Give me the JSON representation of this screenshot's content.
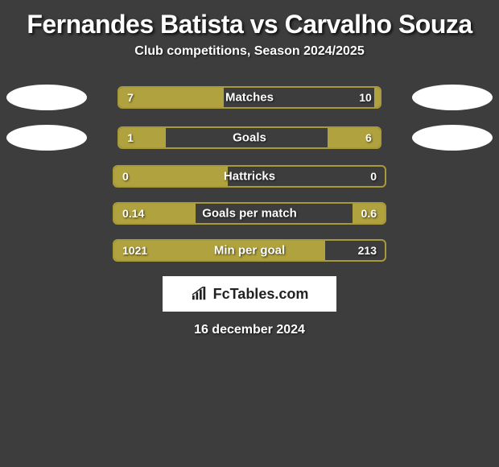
{
  "header": {
    "title": "Fernandes Batista vs Carvalho Souza",
    "subtitle": "Club competitions, Season 2024/2025"
  },
  "colors": {
    "background": "#3d3d3d",
    "bar_fill": "#b0a23e",
    "bar_border": "#a89a3a",
    "text": "#ffffff",
    "photo_bg": "#ffffff",
    "logo_bg": "#ffffff",
    "logo_text": "#222222"
  },
  "stats": [
    {
      "label": "Matches",
      "left_value": "7",
      "right_value": "10",
      "left_pct": 40,
      "right_pct": 2,
      "show_photos": true
    },
    {
      "label": "Goals",
      "left_value": "1",
      "right_value": "6",
      "left_pct": 18,
      "right_pct": 20,
      "show_photos": true
    },
    {
      "label": "Hattricks",
      "left_value": "0",
      "right_value": "0",
      "left_pct": 42,
      "right_pct": 0,
      "show_photos": false
    },
    {
      "label": "Goals per match",
      "left_value": "0.14",
      "right_value": "0.6",
      "left_pct": 30,
      "right_pct": 12,
      "show_photos": false
    },
    {
      "label": "Min per goal",
      "left_value": "1021",
      "right_value": "213",
      "left_pct": 78,
      "right_pct": 0,
      "show_photos": false
    }
  ],
  "footer": {
    "logo_text": "FcTables.com",
    "date": "16 december 2024"
  }
}
